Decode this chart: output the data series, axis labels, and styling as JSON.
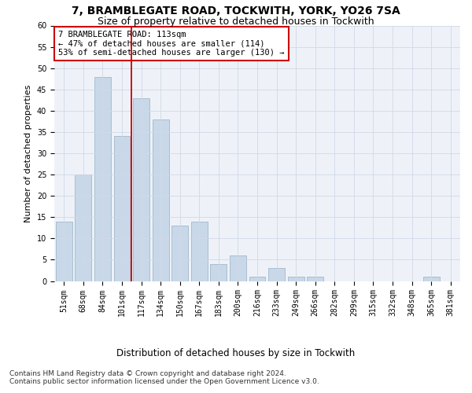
{
  "title1": "7, BRAMBLEGATE ROAD, TOCKWITH, YORK, YO26 7SA",
  "title2": "Size of property relative to detached houses in Tockwith",
  "xlabel": "Distribution of detached houses by size in Tockwith",
  "ylabel": "Number of detached properties",
  "categories": [
    "51sqm",
    "68sqm",
    "84sqm",
    "101sqm",
    "117sqm",
    "134sqm",
    "150sqm",
    "167sqm",
    "183sqm",
    "200sqm",
    "216sqm",
    "233sqm",
    "249sqm",
    "266sqm",
    "282sqm",
    "299sqm",
    "315sqm",
    "332sqm",
    "348sqm",
    "365sqm",
    "381sqm"
  ],
  "values": [
    14,
    25,
    48,
    34,
    43,
    38,
    13,
    14,
    4,
    6,
    1,
    3,
    1,
    1,
    0,
    0,
    0,
    0,
    0,
    1,
    0
  ],
  "bar_color": "#c8d8e8",
  "bar_edge_color": "#a0b8cc",
  "vline_index": 3.5,
  "vline_color": "#cc0000",
  "annotation_text": "7 BRAMBLEGATE ROAD: 113sqm\n← 47% of detached houses are smaller (114)\n53% of semi-detached houses are larger (130) →",
  "annotation_box_color": "#ffffff",
  "annotation_box_edge": "#cc0000",
  "ylim": [
    0,
    60
  ],
  "yticks": [
    0,
    5,
    10,
    15,
    20,
    25,
    30,
    35,
    40,
    45,
    50,
    55,
    60
  ],
  "grid_color": "#d0d8e8",
  "bg_color": "#eef2f8",
  "footer1": "Contains HM Land Registry data © Crown copyright and database right 2024.",
  "footer2": "Contains public sector information licensed under the Open Government Licence v3.0.",
  "title1_fontsize": 10,
  "title2_fontsize": 9,
  "xlabel_fontsize": 8.5,
  "ylabel_fontsize": 8,
  "tick_fontsize": 7,
  "annotation_fontsize": 7.5,
  "footer_fontsize": 6.5
}
